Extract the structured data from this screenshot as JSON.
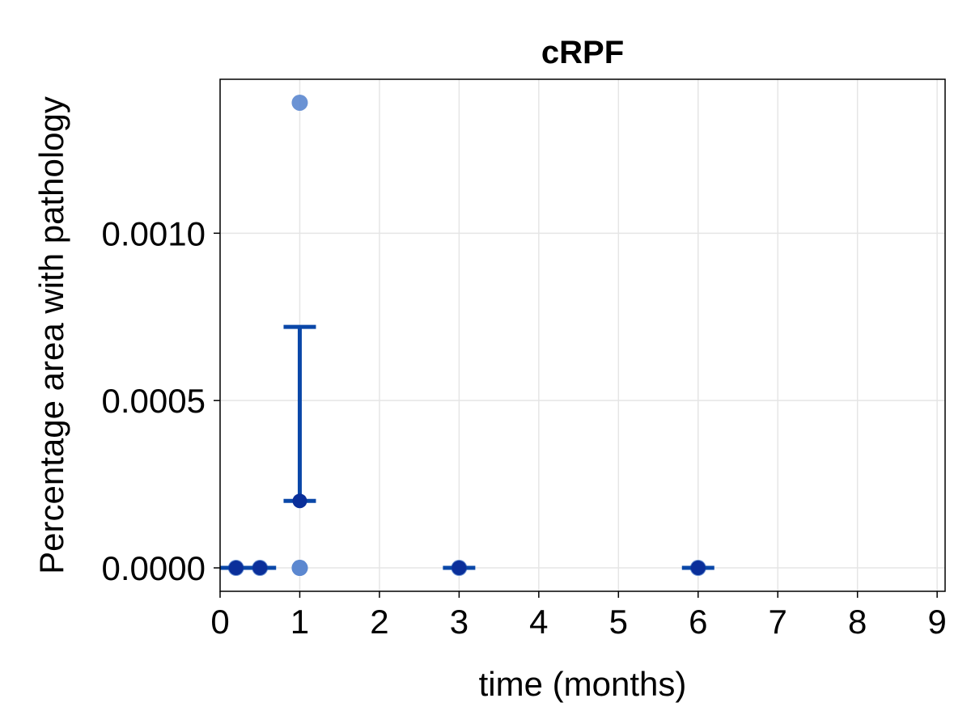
{
  "chart_data": {
    "type": "scatter",
    "title": "cRPF",
    "xlabel": "time (months)",
    "ylabel": "Percentage area with pathology",
    "xlim": [
      0,
      9.1
    ],
    "ylim": [
      -7e-05,
      0.00146
    ],
    "xticks": [
      0,
      1,
      2,
      3,
      4,
      5,
      6,
      7,
      8,
      9
    ],
    "xtick_labels": [
      "0",
      "1",
      "2",
      "3",
      "4",
      "5",
      "6",
      "7",
      "8",
      "9"
    ],
    "yticks": [
      0,
      0.0005,
      0.001
    ],
    "ytick_labels": [
      "0.0000",
      "0.0005",
      "0.0010"
    ],
    "grid": true,
    "colors": {
      "points": "#5b87cf",
      "mean_marker": "#0a2f9a",
      "errorbar": "#0a47a8",
      "grid": "#e5e5e5",
      "frame": "#000000"
    },
    "series": [
      {
        "kind": "individual_points",
        "points": [
          {
            "x": 0.2,
            "y": 0
          },
          {
            "x": 0.5,
            "y": 0
          },
          {
            "x": 1,
            "y": 0.00139
          },
          {
            "x": 1,
            "y": 0
          },
          {
            "x": 1,
            "y": 0
          },
          {
            "x": 3,
            "y": 0
          },
          {
            "x": 6,
            "y": 0
          }
        ]
      },
      {
        "kind": "mean_with_errorbars",
        "points": [
          {
            "x": 0.2,
            "y": 0,
            "low": 0,
            "high": 0
          },
          {
            "x": 0.5,
            "y": 0,
            "low": 0,
            "high": 0
          },
          {
            "x": 1,
            "y": 0.0002,
            "low": 0.0002,
            "high": 0.00072
          },
          {
            "x": 3,
            "y": 0,
            "low": 0,
            "high": 0
          },
          {
            "x": 6,
            "y": 0,
            "low": 0,
            "high": 0
          }
        ]
      }
    ]
  }
}
